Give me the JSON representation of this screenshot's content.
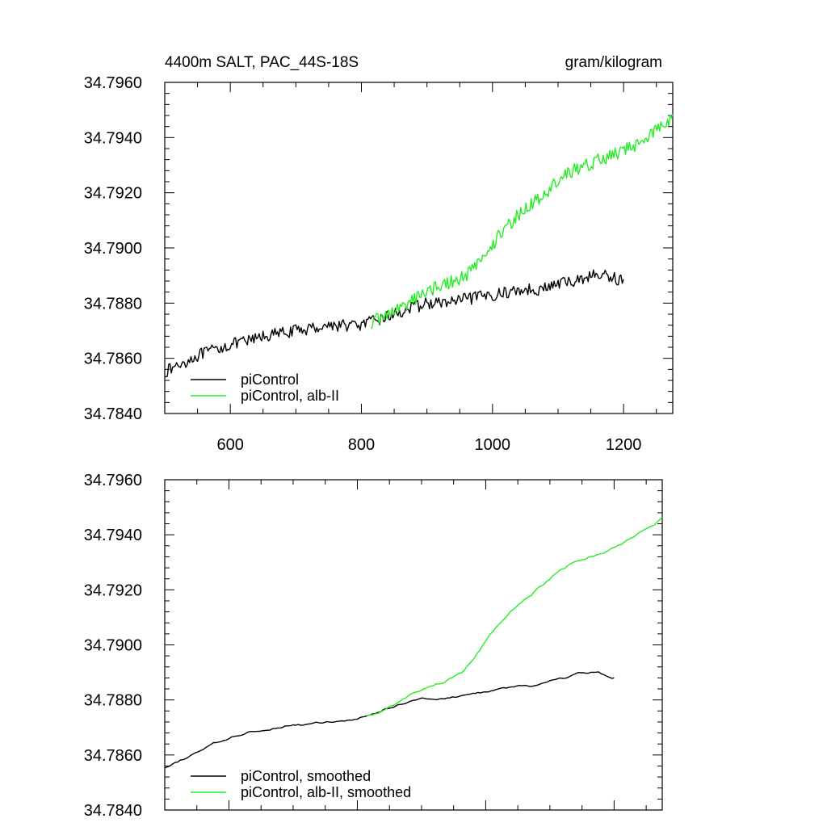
{
  "chart_data": [
    {
      "type": "line",
      "panel": "top",
      "title_left": "4400m SALT, PAC_44S-18S",
      "title_right": "gram/kilogram",
      "xlim": [
        500,
        1275
      ],
      "ylim": [
        34.784,
        34.796
      ],
      "x_tick_labels": [
        "600",
        "800",
        "1000",
        "1200"
      ],
      "x_tick_values": [
        600,
        800,
        1000,
        1200
      ],
      "y_tick_labels": [
        "34.7960",
        "34.7940",
        "34.7920",
        "34.7900",
        "34.7880",
        "34.7860",
        "34.7840"
      ],
      "y_tick_values": [
        34.796,
        34.794,
        34.792,
        34.79,
        34.788,
        34.786,
        34.784
      ],
      "legend_position": "bottom-left",
      "series": [
        {
          "name": "piControl",
          "color": "#000000",
          "noise": 0.00022,
          "x": [
            500,
            525,
            550,
            575,
            600,
            625,
            650,
            675,
            700,
            725,
            750,
            775,
            800,
            825,
            850,
            875,
            900,
            925,
            950,
            975,
            1000,
            1025,
            1050,
            1075,
            1100,
            1125,
            1150,
            1175,
            1200
          ],
          "y": [
            34.7855,
            34.7858,
            34.7861,
            34.7863,
            34.7865,
            34.7866,
            34.7868,
            34.7869,
            34.787,
            34.7871,
            34.7872,
            34.7872,
            34.7872,
            34.7874,
            34.7876,
            34.7878,
            34.788,
            34.788,
            34.7881,
            34.7882,
            34.7883,
            34.7884,
            34.7885,
            34.7885,
            34.7887,
            34.7888,
            34.789,
            34.789,
            34.7888
          ]
        },
        {
          "name": "piControl, alb-II",
          "color": "#22ee22",
          "noise": 0.00025,
          "x": [
            815,
            840,
            865,
            890,
            915,
            940,
            965,
            990,
            1015,
            1040,
            1065,
            1090,
            1115,
            1140,
            1165,
            1190,
            1215,
            1240,
            1265,
            1275
          ],
          "y": [
            34.7873,
            34.7876,
            34.7879,
            34.7883,
            34.7886,
            34.7888,
            34.7891,
            34.7898,
            34.7906,
            34.7912,
            34.7917,
            34.7922,
            34.7927,
            34.793,
            34.7932,
            34.7934,
            34.7937,
            34.7941,
            34.7945,
            34.7948
          ]
        }
      ]
    },
    {
      "type": "line",
      "panel": "bottom",
      "xlim": [
        500,
        1275
      ],
      "ylim": [
        34.784,
        34.796
      ],
      "x_tick_values": [
        600,
        800,
        1000,
        1200
      ],
      "y_tick_labels": [
        "34.7960",
        "34.7940",
        "34.7920",
        "34.7900",
        "34.7880",
        "34.7860",
        "34.7840"
      ],
      "y_tick_values": [
        34.796,
        34.794,
        34.792,
        34.79,
        34.788,
        34.786,
        34.784
      ],
      "legend_position": "bottom-left",
      "series": [
        {
          "name": "piControl, smoothed",
          "color": "#000000",
          "noise": 7e-05,
          "x": [
            500,
            525,
            550,
            575,
            600,
            625,
            650,
            675,
            700,
            725,
            750,
            775,
            800,
            825,
            850,
            875,
            900,
            925,
            950,
            975,
            1000,
            1025,
            1050,
            1075,
            1100,
            1125,
            1150,
            1175,
            1200
          ],
          "y": [
            34.7855,
            34.7858,
            34.7861,
            34.7864,
            34.7866,
            34.7868,
            34.7869,
            34.787,
            34.7871,
            34.7871,
            34.7872,
            34.7872,
            34.7873,
            34.7875,
            34.7877,
            34.7879,
            34.7881,
            34.788,
            34.7881,
            34.7882,
            34.7883,
            34.7884,
            34.7885,
            34.7885,
            34.7887,
            34.7888,
            34.789,
            34.789,
            34.7888
          ]
        },
        {
          "name": "piControl, alb-II, smoothed",
          "color": "#22ee22",
          "noise": 8e-05,
          "x": [
            815,
            840,
            865,
            890,
            915,
            940,
            965,
            990,
            1015,
            1040,
            1065,
            1090,
            1115,
            1140,
            1165,
            1190,
            1215,
            1240,
            1265,
            1275
          ],
          "y": [
            34.7874,
            34.7876,
            34.7879,
            34.7883,
            34.7885,
            34.7887,
            34.789,
            34.7898,
            34.7906,
            34.7912,
            34.7917,
            34.7922,
            34.7927,
            34.793,
            34.7932,
            34.7934,
            34.7937,
            34.7941,
            34.7944,
            34.7946
          ]
        }
      ]
    }
  ]
}
